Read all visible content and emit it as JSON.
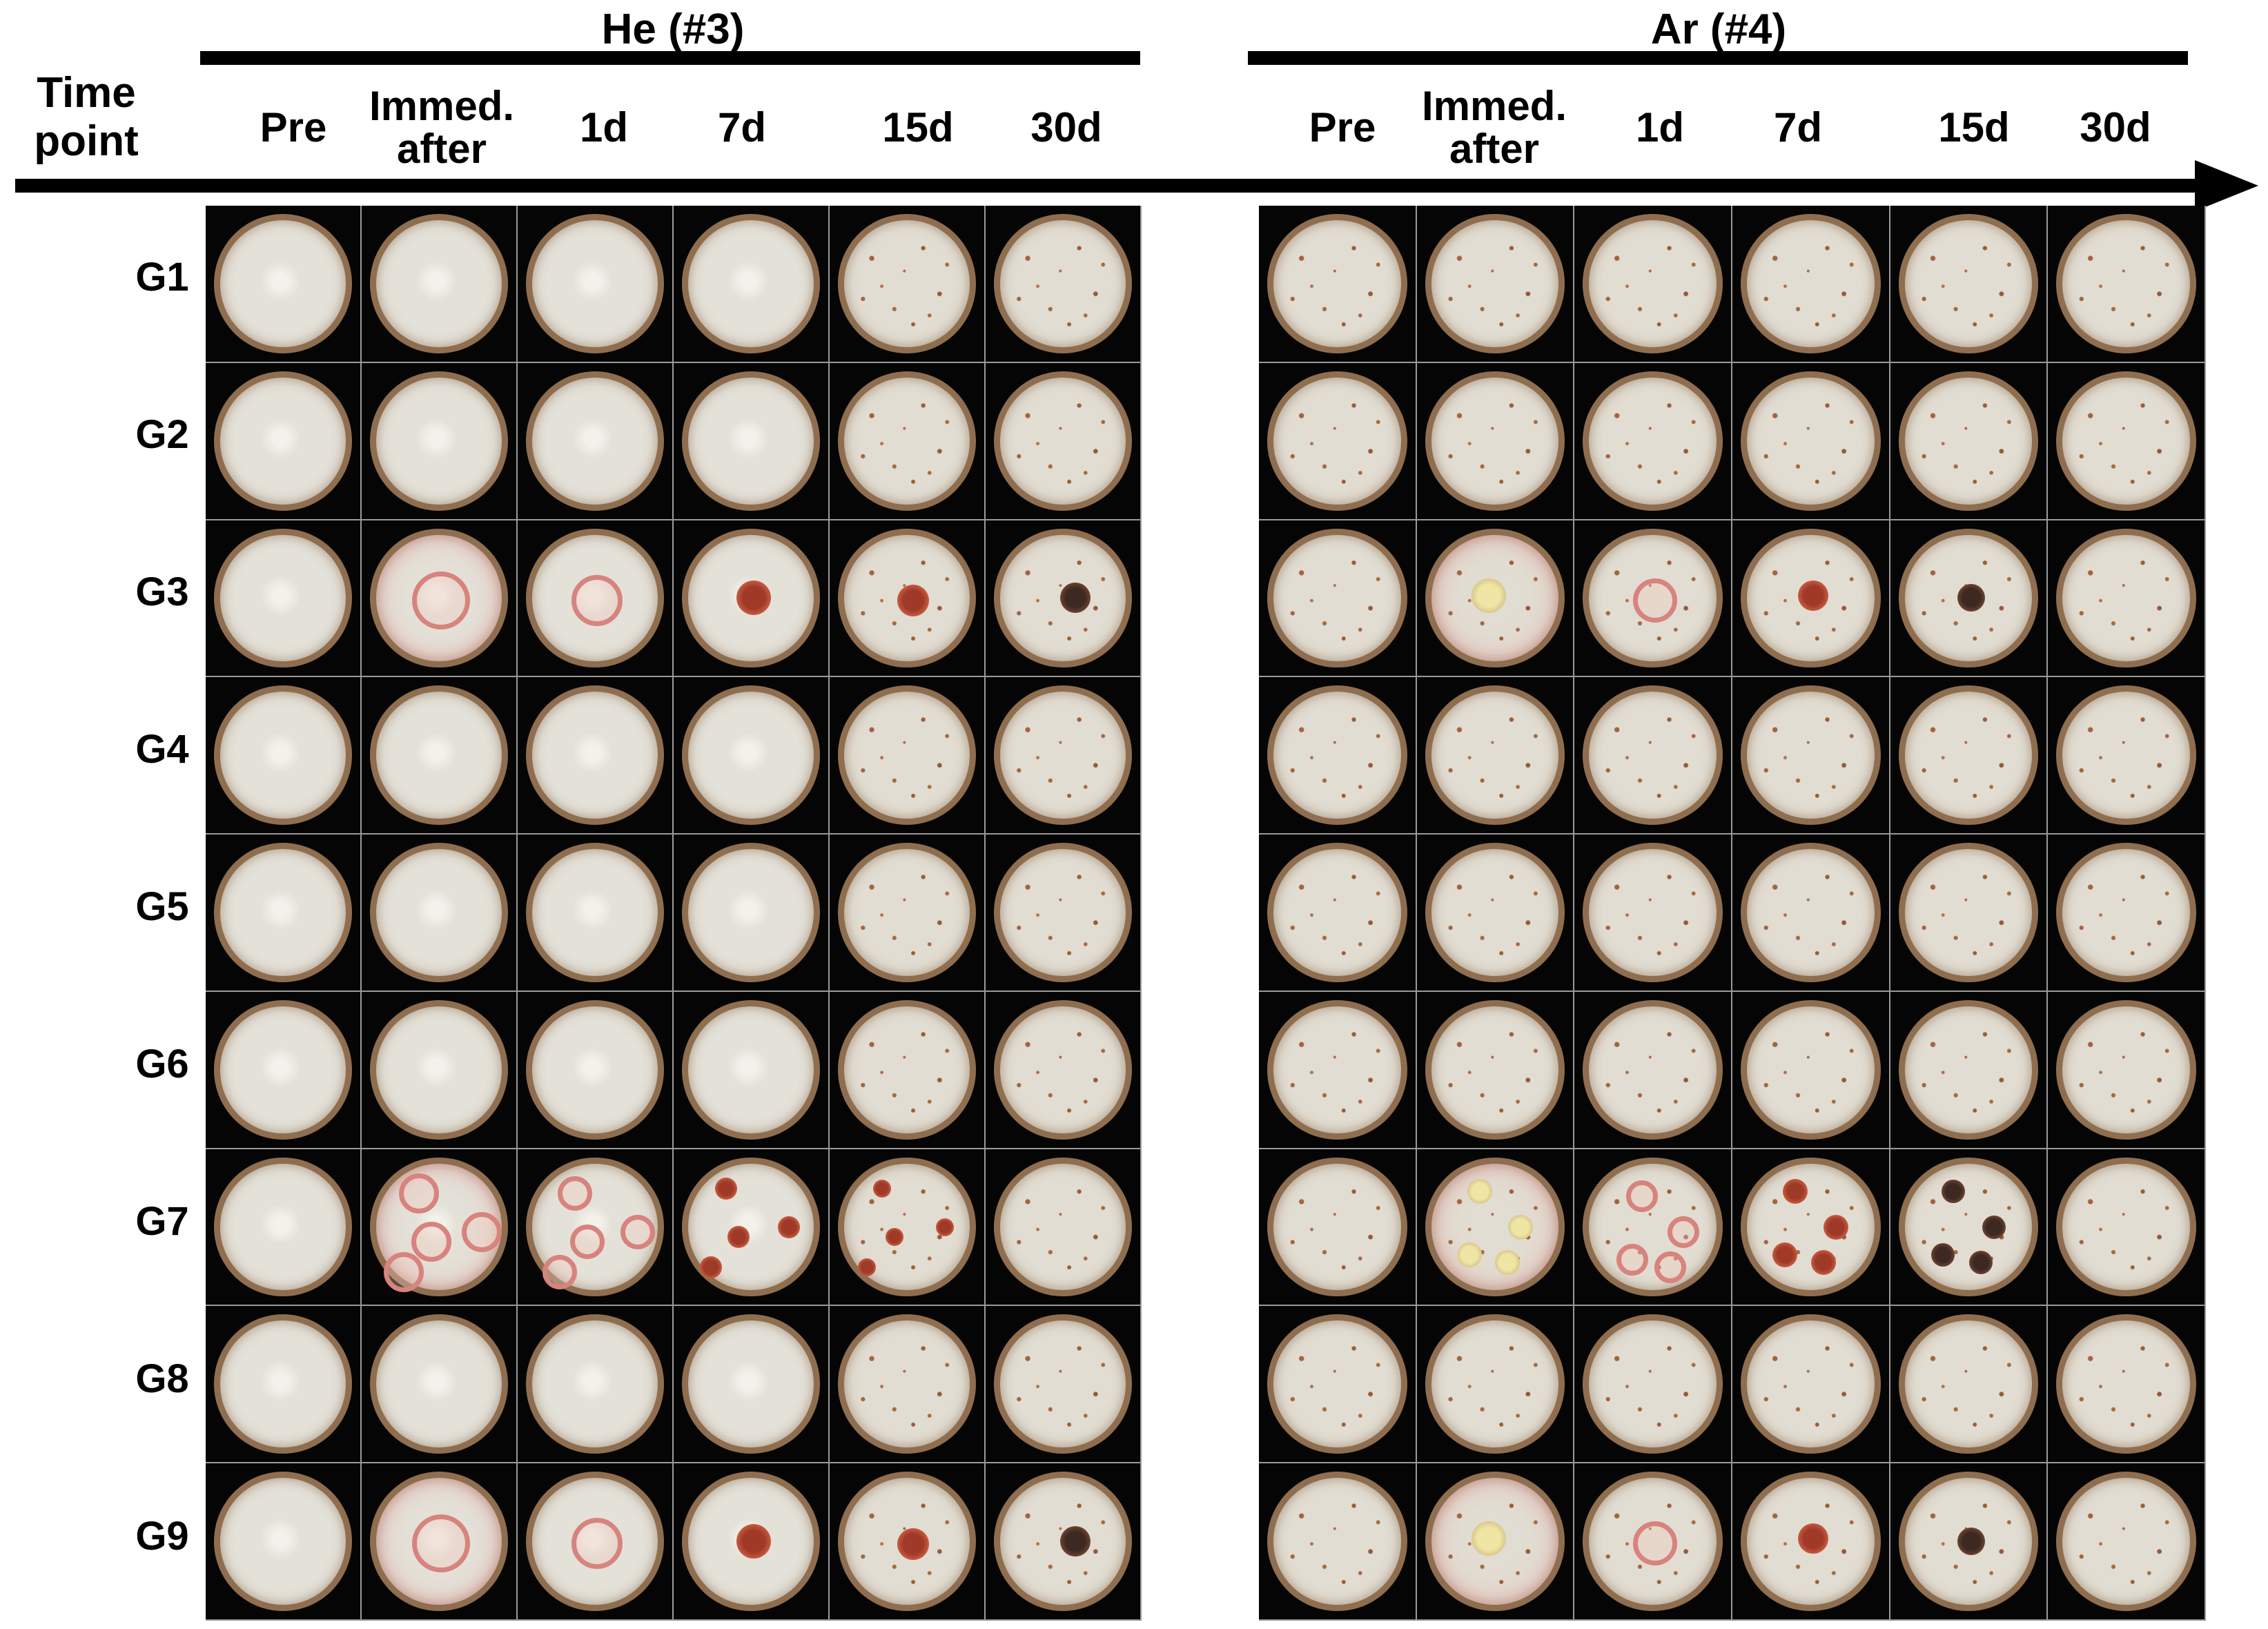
{
  "header": {
    "time_label": "Time\npoint",
    "groups": [
      {
        "title": "He (#3)"
      },
      {
        "title": "Ar (#4)"
      }
    ]
  },
  "columns": [
    "Pre",
    "Immed.\nafter",
    "1d",
    "7d",
    "15d",
    "30d"
  ],
  "rows": [
    "G1",
    "G2",
    "G3",
    "G4",
    "G5",
    "G6",
    "G7",
    "G8",
    "G9"
  ],
  "colors": {
    "background": "#ffffff",
    "panel": "#000000",
    "dish_rim": "#8f6e4f",
    "dish_fill": "#e4e1d8",
    "lesion_red": "#a03a28",
    "lesion_dark": "#3c2a22"
  }
}
